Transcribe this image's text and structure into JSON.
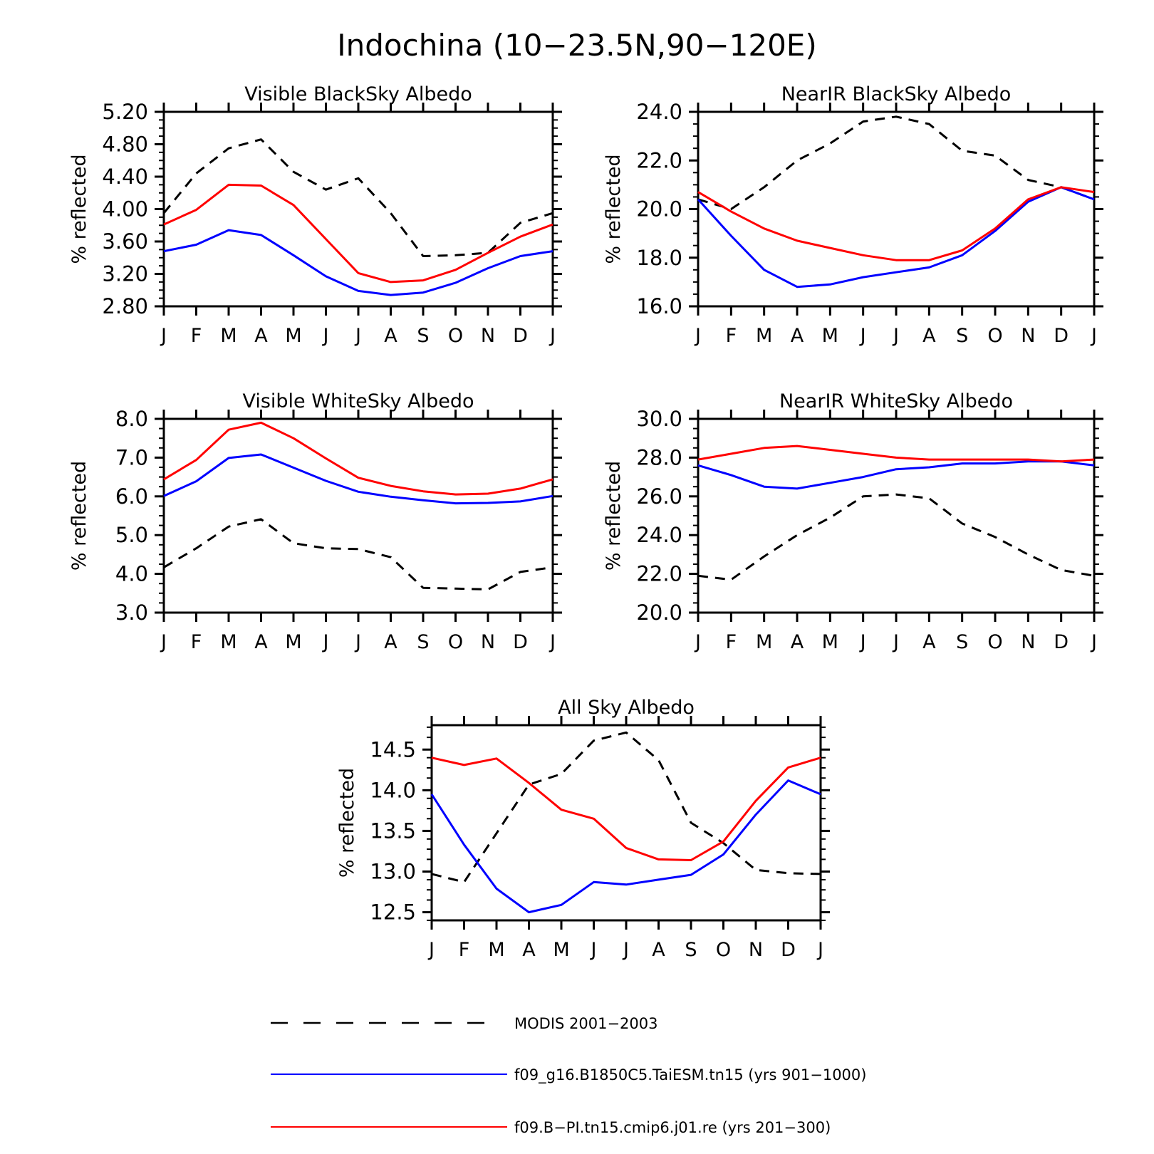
{
  "figure": {
    "title": "Indochina (10−23.5N,90−120E)"
  },
  "legend": [
    {
      "label": "MODIS 2001−2003",
      "color": "#000000",
      "dash": true
    },
    {
      "label": "f09_g16.B1850C5.TaiESM.tn15 (yrs 901−1000)",
      "color": "#0000ff",
      "dash": false
    },
    {
      "label": "f09.B−PI.tn15.cmip6.j01.re (yrs 201−300)",
      "color": "#ff0000",
      "dash": false
    }
  ],
  "chart_data": [
    {
      "type": "line",
      "title": "Visible BlackSky Albedo",
      "ylabel": "% reflected",
      "x": [
        "J",
        "F",
        "M",
        "A",
        "M",
        "J",
        "J",
        "A",
        "S",
        "O",
        "N",
        "D",
        "J"
      ],
      "ylim": [
        2.8,
        5.2
      ],
      "yticks": [
        "2.80",
        "3.20",
        "3.60",
        "4.00",
        "4.40",
        "4.80",
        "5.20"
      ],
      "series": [
        {
          "color": "#000000",
          "dash": true,
          "values": [
            3.95,
            4.44,
            4.75,
            4.86,
            4.46,
            4.24,
            4.38,
            3.95,
            3.42,
            3.43,
            3.46,
            3.83,
            3.95
          ]
        },
        {
          "color": "#0000ff",
          "dash": false,
          "values": [
            3.48,
            3.56,
            3.74,
            3.68,
            3.43,
            3.17,
            2.99,
            2.94,
            2.97,
            3.09,
            3.27,
            3.42,
            3.48
          ]
        },
        {
          "color": "#ff0000",
          "dash": false,
          "values": [
            3.81,
            3.99,
            4.3,
            4.29,
            4.05,
            3.63,
            3.21,
            3.1,
            3.12,
            3.25,
            3.46,
            3.66,
            3.81
          ]
        }
      ]
    },
    {
      "type": "line",
      "title": "NearIR BlackSky Albedo",
      "ylabel": "% reflected",
      "x": [
        "J",
        "F",
        "M",
        "A",
        "M",
        "J",
        "J",
        "A",
        "S",
        "O",
        "N",
        "D",
        "J"
      ],
      "ylim": [
        16.0,
        24.0
      ],
      "yticks": [
        "16.0",
        "18.0",
        "20.0",
        "22.0",
        "24.0"
      ],
      "series": [
        {
          "color": "#000000",
          "dash": true,
          "values": [
            20.4,
            20.0,
            20.9,
            22.0,
            22.7,
            23.6,
            23.8,
            23.5,
            22.4,
            22.2,
            21.2,
            20.9,
            20.4
          ]
        },
        {
          "color": "#0000ff",
          "dash": false,
          "values": [
            20.4,
            18.9,
            17.5,
            16.8,
            16.9,
            17.2,
            17.4,
            17.6,
            18.1,
            19.1,
            20.3,
            20.9,
            20.4
          ]
        },
        {
          "color": "#ff0000",
          "dash": false,
          "values": [
            20.7,
            19.9,
            19.2,
            18.7,
            18.4,
            18.1,
            17.9,
            17.9,
            18.3,
            19.2,
            20.4,
            20.9,
            20.7
          ]
        }
      ]
    },
    {
      "type": "line",
      "title": "Visible WhiteSky Albedo",
      "ylabel": "% reflected",
      "x": [
        "J",
        "F",
        "M",
        "A",
        "M",
        "J",
        "J",
        "A",
        "S",
        "O",
        "N",
        "D",
        "J"
      ],
      "ylim": [
        3.0,
        8.0
      ],
      "yticks": [
        "3.0",
        "4.0",
        "5.0",
        "6.0",
        "7.0",
        "8.0"
      ],
      "series": [
        {
          "color": "#000000",
          "dash": true,
          "values": [
            4.17,
            4.66,
            5.22,
            5.41,
            4.79,
            4.66,
            4.64,
            4.43,
            3.64,
            3.62,
            3.6,
            4.05,
            4.17
          ]
        },
        {
          "color": "#0000ff",
          "dash": false,
          "values": [
            6.01,
            6.39,
            6.99,
            7.08,
            6.74,
            6.4,
            6.12,
            5.99,
            5.9,
            5.82,
            5.83,
            5.87,
            6.01
          ]
        },
        {
          "color": "#ff0000",
          "dash": false,
          "values": [
            6.44,
            6.94,
            7.72,
            7.9,
            7.5,
            6.98,
            6.48,
            6.27,
            6.13,
            6.05,
            6.07,
            6.2,
            6.44
          ]
        }
      ]
    },
    {
      "type": "line",
      "title": "NearIR WhiteSky Albedo",
      "ylabel": "% reflected",
      "x": [
        "J",
        "F",
        "M",
        "A",
        "M",
        "J",
        "J",
        "A",
        "S",
        "O",
        "N",
        "D",
        "J"
      ],
      "ylim": [
        20.0,
        30.0
      ],
      "yticks": [
        "20.0",
        "22.0",
        "24.0",
        "26.0",
        "28.0",
        "30.0"
      ],
      "series": [
        {
          "color": "#000000",
          "dash": true,
          "values": [
            21.9,
            21.7,
            22.9,
            24.0,
            24.9,
            26.0,
            26.1,
            25.9,
            24.6,
            23.9,
            23.0,
            22.2,
            21.9
          ]
        },
        {
          "color": "#0000ff",
          "dash": false,
          "values": [
            27.6,
            27.1,
            26.5,
            26.4,
            26.7,
            27.0,
            27.4,
            27.5,
            27.7,
            27.7,
            27.8,
            27.8,
            27.6
          ]
        },
        {
          "color": "#ff0000",
          "dash": false,
          "values": [
            27.9,
            28.2,
            28.5,
            28.6,
            28.4,
            28.2,
            28.0,
            27.9,
            27.9,
            27.9,
            27.9,
            27.8,
            27.9
          ]
        }
      ]
    },
    {
      "type": "line",
      "title": "All Sky Albedo",
      "ylabel": "% reflected",
      "x": [
        "J",
        "F",
        "M",
        "A",
        "M",
        "J",
        "J",
        "A",
        "S",
        "O",
        "N",
        "D",
        "J"
      ],
      "ylim": [
        12.4,
        14.8
      ],
      "yticks": [
        "12.5",
        "13.0",
        "13.5",
        "14.0",
        "14.5"
      ],
      "series": [
        {
          "color": "#000000",
          "dash": true,
          "values": [
            12.97,
            12.87,
            13.47,
            14.07,
            14.2,
            14.61,
            14.71,
            14.37,
            13.6,
            13.35,
            13.02,
            12.98,
            12.97
          ]
        },
        {
          "color": "#0000ff",
          "dash": false,
          "values": [
            13.95,
            13.33,
            12.79,
            12.5,
            12.59,
            12.87,
            12.84,
            12.9,
            12.96,
            13.21,
            13.7,
            14.12,
            13.95
          ]
        },
        {
          "color": "#ff0000",
          "dash": false,
          "values": [
            14.4,
            14.31,
            14.39,
            14.09,
            13.76,
            13.65,
            13.29,
            13.15,
            13.14,
            13.37,
            13.87,
            14.28,
            14.4
          ]
        }
      ]
    }
  ]
}
